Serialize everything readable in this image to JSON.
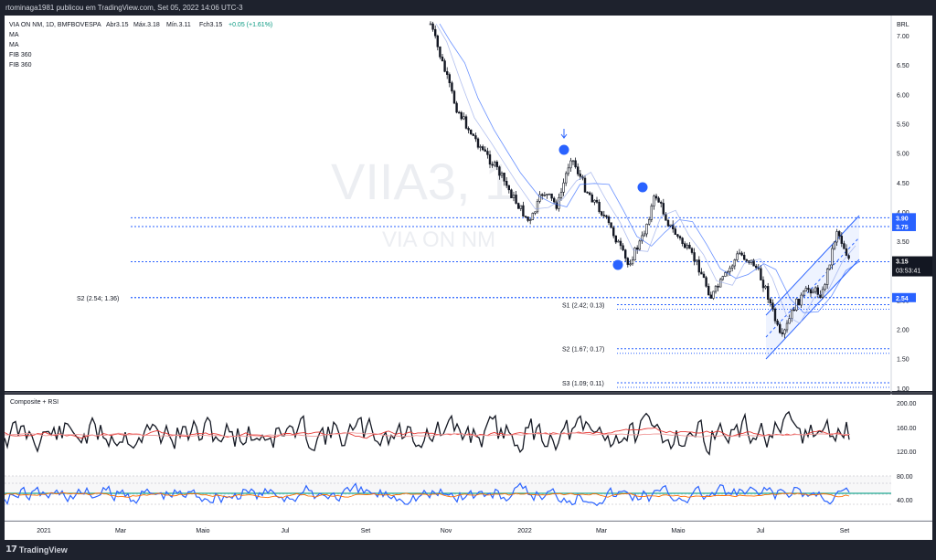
{
  "header": {
    "publisher": "rtominaga1981 publicou em TradingView.com, Set 05, 2022 14:06 UTC-3",
    "symbol_line": "VIA ON NM, 1D, BMFBOVESPA",
    "ohlc": [
      "Abr3.15",
      "Máx.3.18",
      "Mín.3.11",
      "Fch3.15",
      "+0.05 (+1.61%)"
    ],
    "indicators": [
      "MA",
      "MA",
      "FIB 360",
      "FIB 360"
    ]
  },
  "watermark": {
    "ticker": "VIIA3, 1",
    "name": "VIA ON NM"
  },
  "currency": "BRL",
  "price_axis": [
    "7.00",
    "6.50",
    "6.00",
    "5.50",
    "5.00",
    "4.50",
    "4.00",
    "3.50",
    "3.00",
    "2.50",
    "2.00",
    "1.50",
    "1.00"
  ],
  "price_tags": [
    {
      "value": 3.9,
      "label": "3.90",
      "color": "#2962ff"
    },
    {
      "value": 3.75,
      "label": "3.75",
      "color": "#2962ff"
    },
    {
      "value": 2.54,
      "label": "2.54",
      "color": "#2962ff"
    }
  ],
  "current": {
    "price": "3.15",
    "countdown": "03:53:41",
    "value": 3.15
  },
  "levels": [
    {
      "label": "S2 (2.54; 1.36)",
      "value": 2.54
    },
    {
      "label": "S1 (2.42; 0.13)",
      "value": 2.42
    },
    {
      "label": "S2 (1.67; 0.17)",
      "value": 1.67
    },
    {
      "label": "S3 (1.09; 0.11)",
      "value": 1.09
    }
  ],
  "rsi_pane": {
    "title": "Composite + RSI",
    "axis_top": [
      "200.00",
      "160.00",
      "120.00"
    ],
    "axis_bottom": [
      "80.00",
      "40.00"
    ]
  },
  "time_axis": [
    "2021",
    "Mar",
    "Maio",
    "Jul",
    "Set",
    "Nov",
    "2022",
    "Mar",
    "Maio",
    "Jul",
    "Set"
  ],
  "footer": {
    "brand": "TradingView"
  },
  "chart_data": {
    "type": "line",
    "title": "VIA ON NM, 1D, BMFBOVESPA",
    "ylabel": "BRL",
    "ylim": [
      1.0,
      7.2
    ],
    "x": [
      "2021-10-20",
      "2021-10-28",
      "2021-11-08",
      "2021-11-18",
      "2021-11-30",
      "2021-12-10",
      "2021-12-20",
      "2022-01-03",
      "2022-01-13",
      "2022-01-24",
      "2022-02-03",
      "2022-02-14",
      "2022-02-25",
      "2022-03-08",
      "2022-03-18",
      "2022-03-29",
      "2022-04-08",
      "2022-04-19",
      "2022-04-29",
      "2022-05-10",
      "2022-05-20",
      "2022-06-01",
      "2022-06-10",
      "2022-06-22",
      "2022-07-01",
      "2022-07-12",
      "2022-07-22",
      "2022-08-02",
      "2022-08-12",
      "2022-08-23",
      "2022-09-02"
    ],
    "series": [
      {
        "values": [
          7.2,
          6.6,
          5.8,
          5.4,
          5.0,
          4.7,
          4.3,
          3.8,
          4.35,
          4.1,
          4.95,
          4.4,
          4.05,
          3.6,
          3.1,
          3.55,
          4.3,
          3.75,
          3.45,
          3.1,
          2.55,
          2.95,
          3.3,
          3.1,
          2.65,
          1.8,
          2.4,
          2.7,
          2.6,
          3.7,
          3.15
        ]
      }
    ],
    "grid": false
  }
}
